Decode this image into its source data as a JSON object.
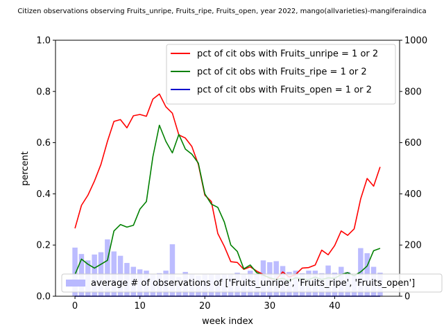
{
  "chart_data": {
    "type": "line",
    "title": "Citizen observations observing Fruits_unripe, Fruits_ripe, Fruits_open, year 2022, mango(allvarieties)-mangiferaindica",
    "xlabel": "week index",
    "ylabel": "percent",
    "xlim": [
      -3,
      50
    ],
    "ylim": [
      0,
      1.0
    ],
    "y2lim": [
      0,
      1000
    ],
    "x_ticks": [
      0,
      10,
      20,
      30,
      40
    ],
    "y_ticks": [
      "0.0",
      "0.2",
      "0.4",
      "0.6",
      "0.8",
      "1.0"
    ],
    "y2_ticks": [
      "0",
      "200",
      "400",
      "600",
      "800",
      "1000"
    ],
    "grid": false,
    "legend_placement": "top-right",
    "x": [
      0,
      1,
      2,
      3,
      4,
      5,
      6,
      7,
      8,
      9,
      10,
      11,
      12,
      13,
      14,
      15,
      16,
      17,
      18,
      19,
      20,
      21,
      22,
      23,
      24,
      25,
      26,
      27,
      28,
      29,
      30,
      31,
      32,
      33,
      34,
      35,
      36,
      37,
      38,
      39,
      40,
      41,
      42,
      43,
      44,
      45,
      46,
      47
    ],
    "series": [
      {
        "name": "pct of cit obs with Fruits_unripe = 1 or 2",
        "color": "#ff0000",
        "axis": "left",
        "values": [
          0.265,
          0.355,
          0.395,
          0.45,
          0.515,
          0.605,
          0.683,
          0.69,
          0.658,
          0.705,
          0.71,
          0.703,
          0.77,
          0.79,
          0.74,
          0.715,
          0.63,
          0.618,
          0.585,
          0.515,
          0.395,
          0.37,
          0.245,
          0.195,
          0.135,
          0.132,
          0.105,
          0.115,
          0.098,
          0.085,
          0.07,
          0.065,
          0.095,
          0.075,
          0.085,
          0.11,
          0.112,
          0.122,
          0.18,
          0.162,
          0.198,
          0.255,
          0.238,
          0.263,
          0.38,
          0.46,
          0.43,
          0.505
        ]
      },
      {
        "name": "pct of cit obs with Fruits_ripe = 1 or 2",
        "color": "#008000",
        "axis": "left",
        "values": [
          0.085,
          0.145,
          0.125,
          0.11,
          0.125,
          0.14,
          0.255,
          0.28,
          0.27,
          0.277,
          0.34,
          0.37,
          0.545,
          0.668,
          0.605,
          0.56,
          0.632,
          0.575,
          0.555,
          0.52,
          0.4,
          0.36,
          0.347,
          0.29,
          0.2,
          0.175,
          0.107,
          0.122,
          0.092,
          0.082,
          0.072,
          0.065,
          0.07,
          0.06,
          0.072,
          0.068,
          0.065,
          0.075,
          0.065,
          0.072,
          0.07,
          0.085,
          0.092,
          0.08,
          0.095,
          0.118,
          0.178,
          0.187
        ]
      },
      {
        "name": "pct of cit obs with Fruits_open = 1 or 2",
        "color": "#0000cc",
        "axis": "left",
        "values": [
          0,
          0,
          0,
          0,
          0,
          0,
          0,
          0,
          0,
          0,
          0,
          0,
          0,
          0,
          0,
          0,
          0,
          0,
          0,
          0,
          0,
          0,
          0,
          0,
          0,
          0,
          0,
          0,
          0,
          0,
          0,
          0,
          0,
          0,
          0,
          0,
          0,
          0,
          0,
          0,
          0,
          0,
          0,
          0,
          0,
          0,
          0,
          0
        ]
      },
      {
        "name": "average # of observations of ['Fruits_unripe', 'Fruits_ripe', 'Fruits_open']",
        "type": "bar",
        "color": "#b8b8ff",
        "axis": "right",
        "values": [
          190,
          165,
          140,
          163,
          172,
          222,
          175,
          158,
          130,
          115,
          105,
          100,
          85,
          90,
          100,
          203,
          75,
          95,
          85,
          80,
          85,
          85,
          85,
          85,
          85,
          92,
          85,
          100,
          85,
          140,
          133,
          137,
          118,
          95,
          100,
          90,
          100,
          100,
          90,
          120,
          92,
          115,
          95,
          85,
          188,
          168,
          115,
          92
        ]
      }
    ]
  }
}
